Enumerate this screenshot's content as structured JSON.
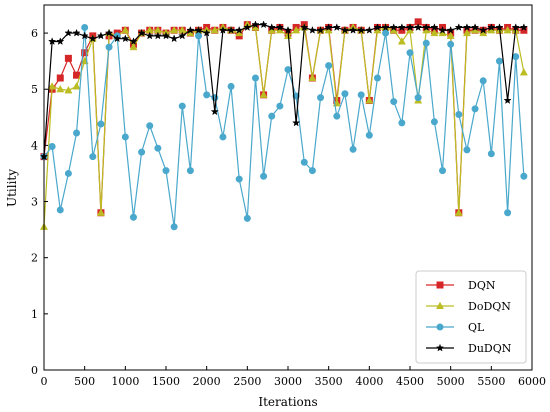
{
  "chart_data": {
    "type": "line",
    "xlabel": "Iterations",
    "ylabel": "Utility",
    "xlim": [
      0,
      6000
    ],
    "ylim": [
      0,
      6.5
    ],
    "xticks": [
      "0",
      "500",
      "1000",
      "1500",
      "2000",
      "2500",
      "3000",
      "3500",
      "4000",
      "4500",
      "5000",
      "5500",
      "6000"
    ],
    "yticks": [
      "0",
      "1",
      "2",
      "3",
      "4",
      "5",
      "6"
    ],
    "grid": false,
    "legend_position": "bottom-right",
    "x": [
      0,
      100,
      200,
      300,
      400,
      500,
      600,
      700,
      800,
      900,
      1000,
      1100,
      1200,
      1300,
      1400,
      1500,
      1600,
      1700,
      1800,
      1900,
      2000,
      2100,
      2200,
      2300,
      2400,
      2500,
      2600,
      2700,
      2800,
      2900,
      3000,
      3100,
      3200,
      3300,
      3400,
      3500,
      3600,
      3700,
      3800,
      3900,
      4000,
      4100,
      4200,
      4300,
      4400,
      4500,
      4600,
      4700,
      4800,
      4900,
      5000,
      5100,
      5200,
      5300,
      5400,
      5500,
      5600,
      5700,
      5800,
      5900
    ],
    "series": [
      {
        "name": "DQN",
        "color": "#d62728",
        "marker": "square",
        "values": [
          3.8,
          5.0,
          5.2,
          5.55,
          5.25,
          5.65,
          5.95,
          2.8,
          5.95,
          6.0,
          6.05,
          5.8,
          6.0,
          6.05,
          6.05,
          6.0,
          6.05,
          6.05,
          6.0,
          6.05,
          6.1,
          6.05,
          6.1,
          6.05,
          5.95,
          6.15,
          6.1,
          4.9,
          6.05,
          6.1,
          6.0,
          6.1,
          6.15,
          5.2,
          6.05,
          6.1,
          4.8,
          6.05,
          6.1,
          6.05,
          4.8,
          6.1,
          6.1,
          6.05,
          6.05,
          6.1,
          6.2,
          6.1,
          6.05,
          6.1,
          6.0,
          2.8,
          6.05,
          6.05,
          6.05,
          6.1,
          6.05,
          6.1,
          6.05,
          6.05
        ]
      },
      {
        "name": "DoDQN",
        "color": "#bcbd22",
        "marker": "triangle",
        "values": [
          2.55,
          5.05,
          5.0,
          4.98,
          5.05,
          5.5,
          5.9,
          2.8,
          6.0,
          5.95,
          6.05,
          5.75,
          6.0,
          6.05,
          6.05,
          6.0,
          6.05,
          6.05,
          6.0,
          6.05,
          6.05,
          6.05,
          6.1,
          6.05,
          6.0,
          6.15,
          6.1,
          4.9,
          6.05,
          6.05,
          5.95,
          6.05,
          6.1,
          5.2,
          6.05,
          6.05,
          4.75,
          6.05,
          6.1,
          6.05,
          4.8,
          6.05,
          6.1,
          6.05,
          5.85,
          6.05,
          4.8,
          6.05,
          6.0,
          6.0,
          5.95,
          2.8,
          6.0,
          6.05,
          6.0,
          6.05,
          6.05,
          6.05,
          6.05,
          5.3
        ]
      },
      {
        "name": "QL",
        "color": "#4aa8cc",
        "marker": "circle",
        "values": [
          3.8,
          3.98,
          2.85,
          3.5,
          4.22,
          6.1,
          3.8,
          4.38,
          5.75,
          5.95,
          4.15,
          2.72,
          3.88,
          4.35,
          3.95,
          3.55,
          2.55,
          4.7,
          3.55,
          5.95,
          4.9,
          4.85,
          4.15,
          5.05,
          3.4,
          2.7,
          5.2,
          3.45,
          4.52,
          4.7,
          5.35,
          4.88,
          3.7,
          3.55,
          4.85,
          5.42,
          4.52,
          4.92,
          3.93,
          4.9,
          4.18,
          5.2,
          6.0,
          4.78,
          4.4,
          5.65,
          4.85,
          5.82,
          4.42,
          3.55,
          5.8,
          4.55,
          3.92,
          4.65,
          5.15,
          3.85,
          5.5,
          2.8,
          5.58,
          3.45
        ]
      },
      {
        "name": "DuDQN",
        "color": "#000000",
        "marker": "star",
        "values": [
          3.8,
          5.85,
          5.85,
          6.0,
          6.0,
          5.95,
          5.9,
          5.95,
          6.0,
          5.9,
          5.9,
          5.85,
          6.0,
          5.95,
          5.95,
          5.95,
          5.9,
          5.95,
          6.05,
          6.05,
          6.0,
          4.6,
          6.05,
          6.05,
          6.05,
          6.1,
          6.15,
          6.15,
          6.1,
          6.1,
          6.05,
          4.4,
          6.1,
          6.05,
          6.05,
          6.1,
          6.1,
          6.05,
          6.05,
          6.05,
          6.05,
          6.1,
          6.1,
          6.1,
          6.1,
          6.1,
          6.1,
          6.1,
          6.1,
          6.05,
          6.05,
          6.1,
          6.1,
          6.1,
          6.05,
          6.1,
          6.1,
          4.8,
          6.1,
          6.1
        ]
      }
    ]
  }
}
